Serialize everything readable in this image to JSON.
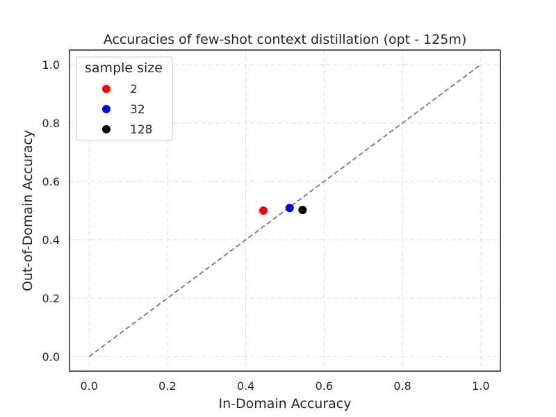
{
  "chart_data": {
    "type": "scatter",
    "title": "Accuracies of few-shot context distillation (opt - 125m)",
    "xlabel": "In-Domain Accuracy",
    "ylabel": "Out-of-Domain Accuracy",
    "xlim": [
      -0.05,
      1.05
    ],
    "ylim": [
      -0.05,
      1.05
    ],
    "xticks": [
      "0.0",
      "0.2",
      "0.4",
      "0.6",
      "0.8",
      "1.0"
    ],
    "yticks": [
      "0.0",
      "0.2",
      "0.4",
      "0.6",
      "0.8",
      "1.0"
    ],
    "grid": true,
    "reference_line": {
      "from": [
        0,
        0
      ],
      "to": [
        1,
        1
      ],
      "style": "dashed",
      "color": "#777777"
    },
    "legend": {
      "title": "sample size",
      "placement": "top-left"
    },
    "series": [
      {
        "name": "2",
        "color": "#ff0000",
        "x": [
          0.445
        ],
        "y": [
          0.5
        ]
      },
      {
        "name": "32",
        "color": "#0000ff",
        "x": [
          0.512
        ],
        "y": [
          0.509
        ]
      },
      {
        "name": "128",
        "color": "#000000",
        "x": [
          0.545
        ],
        "y": [
          0.502
        ]
      }
    ]
  }
}
